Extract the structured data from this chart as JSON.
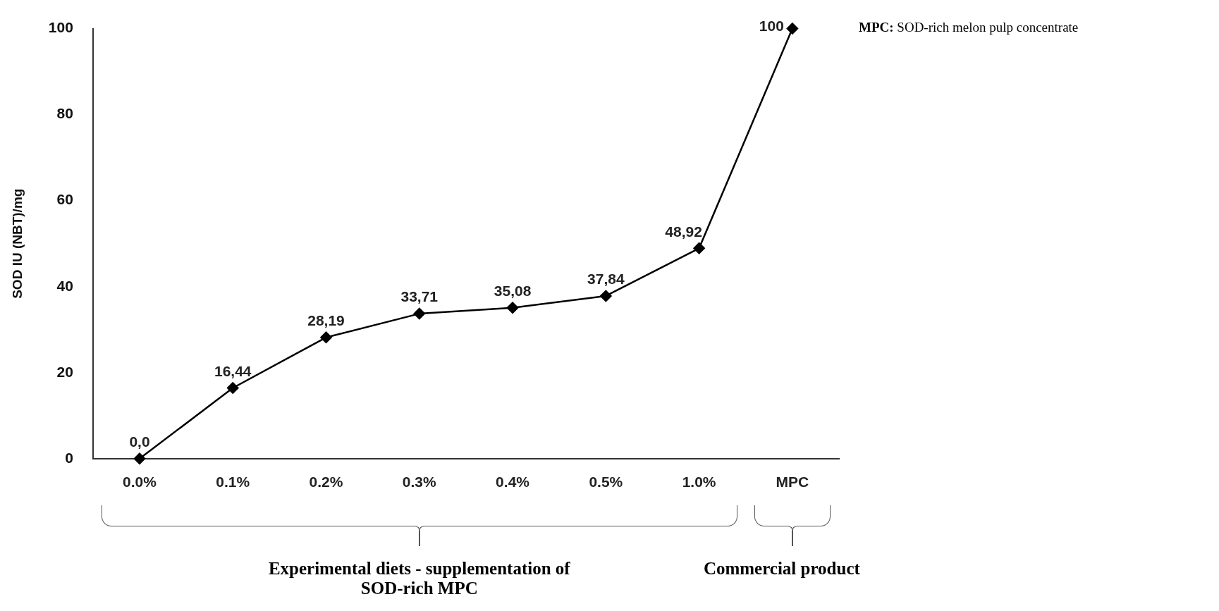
{
  "chart_data": {
    "type": "line",
    "ylabel": "SOD IU (NBT)/mg",
    "categories": [
      "0.0%",
      "0.1%",
      "0.2%",
      "0.3%",
      "0.4%",
      "0.5%",
      "1.0%",
      "MPC"
    ],
    "series": [
      {
        "color": "#000000",
        "values": [
          0,
          16.44,
          28.19,
          33.71,
          35.08,
          37.84,
          48.92,
          100
        ],
        "value_labels": [
          "0,0",
          "16,44",
          "28,19",
          "33,71",
          "35,08",
          "37,84",
          "48,92",
          "100"
        ]
      }
    ],
    "ylim": [
      0,
      100
    ],
    "yticks": [
      0,
      20,
      40,
      60,
      80,
      100
    ],
    "grid": false,
    "legend": false,
    "marker": "diamond",
    "line_style": "solid",
    "annotations": [
      "Experimental diets - supplementation of SOD-rich MPC",
      "Commercial product",
      "MPC: SOD-rich melon pulp concentrate"
    ]
  }
}
